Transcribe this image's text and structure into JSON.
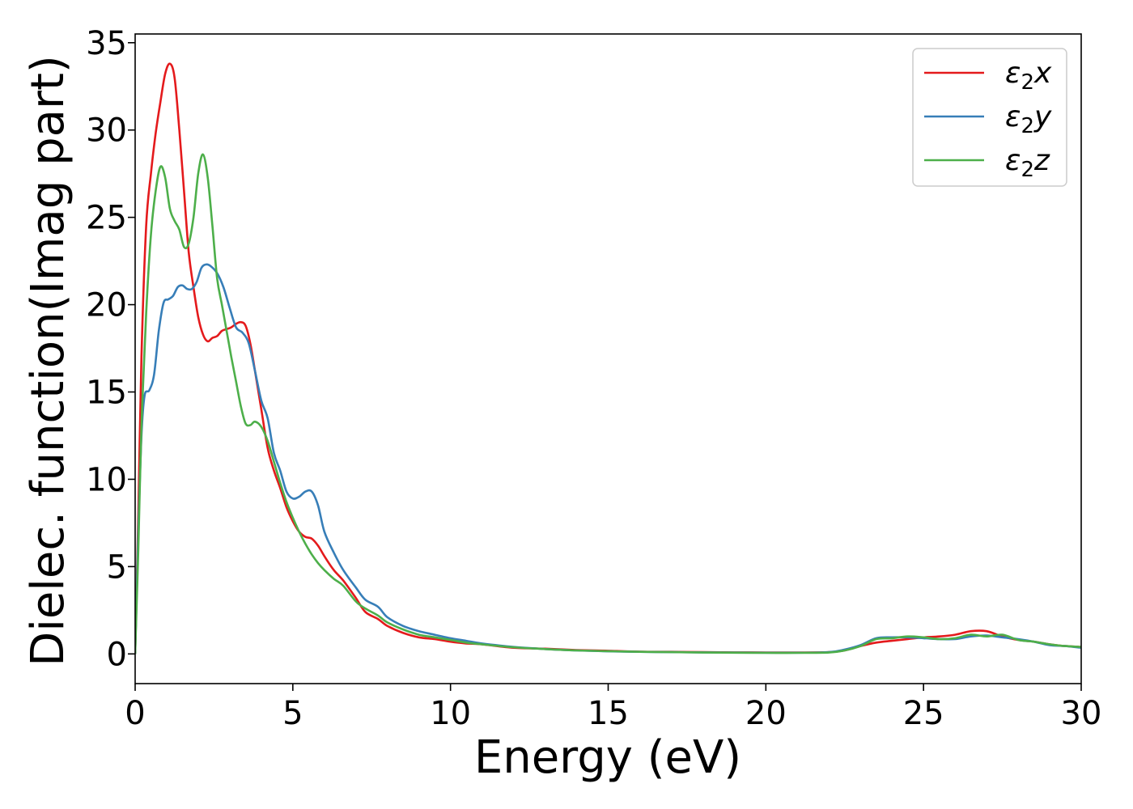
{
  "chart_data": {
    "type": "line",
    "xlabel": "Energy (eV)",
    "ylabel": "Dielec. function(Imag part)",
    "xlim": [
      0,
      30
    ],
    "ylim": [
      -1.7,
      35.5
    ],
    "xticks": [
      0,
      5,
      10,
      15,
      20,
      25,
      30
    ],
    "yticks": [
      0,
      5,
      10,
      15,
      20,
      25,
      30,
      35
    ],
    "grid": false,
    "legend": "top-right",
    "legend_entries": [
      {
        "base": "ε",
        "sub": "2",
        "suffix": "x"
      },
      {
        "base": "ε",
        "sub": "2",
        "suffix": "y"
      },
      {
        "base": "ε",
        "sub": "2",
        "suffix": "z"
      }
    ],
    "series": [
      {
        "name": "ε2x",
        "color": "#e41a1c",
        "x": [
          0,
          0.1,
          0.2,
          0.35,
          0.5,
          0.65,
          0.8,
          0.95,
          1.1,
          1.25,
          1.4,
          1.55,
          1.7,
          1.85,
          2.0,
          2.15,
          2.3,
          2.45,
          2.6,
          2.75,
          2.9,
          3.05,
          3.2,
          3.35,
          3.5,
          3.65,
          3.8,
          4.0,
          4.2,
          4.4,
          4.6,
          4.8,
          5.0,
          5.2,
          5.4,
          5.6,
          5.8,
          6.0,
          6.3,
          6.6,
          7.0,
          7.3,
          7.7,
          8.0,
          8.5,
          9.0,
          9.5,
          10.0,
          10.5,
          11.0,
          12.0,
          13.0,
          14.0,
          15.0,
          16.0,
          17.0,
          18.0,
          19.0,
          20.0,
          21.0,
          22.0,
          22.5,
          23.0,
          23.5,
          24.0,
          24.5,
          25.0,
          25.5,
          26.0,
          26.5,
          27.0,
          27.5,
          28.0,
          28.5,
          29.0,
          29.5,
          30.0
        ],
        "values": [
          0,
          8,
          17,
          24.5,
          27.5,
          29.8,
          31.6,
          33.2,
          33.8,
          33,
          30,
          26.5,
          23,
          21,
          19.3,
          18.3,
          17.9,
          18.1,
          18.2,
          18.5,
          18.6,
          18.7,
          18.9,
          19,
          18.8,
          17.8,
          16.2,
          14,
          11.8,
          10.5,
          9.5,
          8.4,
          7.6,
          7,
          6.7,
          6.6,
          6.2,
          5.6,
          4.8,
          4.2,
          3.2,
          2.4,
          2,
          1.6,
          1.2,
          0.95,
          0.85,
          0.7,
          0.6,
          0.55,
          0.35,
          0.3,
          0.22,
          0.18,
          0.13,
          0.12,
          0.1,
          0.09,
          0.08,
          0.08,
          0.1,
          0.2,
          0.45,
          0.65,
          0.75,
          0.85,
          0.95,
          1.0,
          1.1,
          1.3,
          1.3,
          1.0,
          0.8,
          0.7,
          0.55,
          0.45,
          0.4
        ]
      },
      {
        "name": "ε2y",
        "color": "#377eb8",
        "x": [
          0,
          0.1,
          0.2,
          0.3,
          0.45,
          0.6,
          0.75,
          0.9,
          1.05,
          1.2,
          1.35,
          1.5,
          1.65,
          1.8,
          1.95,
          2.1,
          2.25,
          2.4,
          2.6,
          2.8,
          3.0,
          3.2,
          3.4,
          3.6,
          3.8,
          4.0,
          4.2,
          4.4,
          4.6,
          4.8,
          5.0,
          5.2,
          5.4,
          5.6,
          5.8,
          6.0,
          6.3,
          6.6,
          7.0,
          7.3,
          7.7,
          8.0,
          8.5,
          9.0,
          9.5,
          10.0,
          10.5,
          11.0,
          12.0,
          13.0,
          14.0,
          15.0,
          16.0,
          17.0,
          18.0,
          19.0,
          20.0,
          21.0,
          22.0,
          22.5,
          23.0,
          23.5,
          24.0,
          24.5,
          25.0,
          25.5,
          26.0,
          26.5,
          27.0,
          27.5,
          28.0,
          28.5,
          29.0,
          29.5,
          30.0
        ],
        "values": [
          0,
          7,
          12.5,
          14.8,
          15.1,
          16,
          18.5,
          20.1,
          20.3,
          20.5,
          21,
          21.1,
          20.9,
          20.9,
          21.3,
          22.1,
          22.3,
          22.2,
          21.8,
          21,
          19.8,
          18.7,
          18.4,
          17.8,
          16.2,
          14.5,
          13.5,
          11.5,
          10.5,
          9.3,
          8.9,
          9,
          9.3,
          9.3,
          8.5,
          7,
          5.8,
          4.8,
          3.8,
          3.1,
          2.7,
          2.1,
          1.6,
          1.3,
          1.1,
          0.9,
          0.75,
          0.6,
          0.4,
          0.28,
          0.2,
          0.15,
          0.12,
          0.1,
          0.09,
          0.08,
          0.07,
          0.07,
          0.1,
          0.25,
          0.5,
          0.9,
          0.95,
          0.95,
          0.9,
          0.85,
          0.85,
          1.0,
          1.05,
          0.95,
          0.85,
          0.7,
          0.5,
          0.45,
          0.35
        ]
      },
      {
        "name": "ε2z",
        "color": "#4daf4a",
        "x": [
          0,
          0.1,
          0.2,
          0.35,
          0.5,
          0.65,
          0.8,
          0.95,
          1.1,
          1.25,
          1.4,
          1.55,
          1.7,
          1.85,
          2.0,
          2.15,
          2.3,
          2.45,
          2.6,
          2.75,
          2.9,
          3.05,
          3.2,
          3.35,
          3.5,
          3.65,
          3.8,
          4.0,
          4.2,
          4.4,
          4.6,
          4.8,
          5.0,
          5.2,
          5.4,
          5.6,
          5.8,
          6.0,
          6.3,
          6.6,
          7.0,
          7.3,
          7.7,
          8.0,
          8.5,
          9.0,
          9.5,
          10.0,
          10.5,
          11.0,
          12.0,
          13.0,
          14.0,
          15.0,
          16.0,
          17.0,
          18.0,
          19.0,
          20.0,
          21.0,
          22.0,
          22.5,
          23.0,
          23.5,
          24.0,
          24.5,
          25.0,
          25.5,
          26.0,
          26.5,
          27.0,
          27.5,
          28.0,
          28.5,
          29.0,
          29.5,
          30.0
        ],
        "values": [
          0,
          6,
          13,
          19.5,
          24,
          26.5,
          27.9,
          27.3,
          25.5,
          24.8,
          24.3,
          23.3,
          23.5,
          25,
          27.5,
          28.6,
          27.3,
          24.5,
          21.5,
          20,
          18.5,
          17,
          15.6,
          14.2,
          13.2,
          13.1,
          13.3,
          13,
          12.2,
          11,
          9.8,
          8.7,
          7.8,
          7,
          6.3,
          5.7,
          5.2,
          4.8,
          4.3,
          3.9,
          3,
          2.6,
          2.2,
          1.8,
          1.4,
          1.1,
          0.95,
          0.8,
          0.65,
          0.55,
          0.38,
          0.28,
          0.2,
          0.16,
          0.12,
          0.1,
          0.08,
          0.07,
          0.06,
          0.06,
          0.08,
          0.2,
          0.45,
          0.85,
          0.9,
          1.0,
          0.95,
          0.85,
          0.9,
          1.1,
          1.0,
          1.1,
          0.8,
          0.7,
          0.55,
          0.45,
          0.4
        ]
      }
    ]
  }
}
